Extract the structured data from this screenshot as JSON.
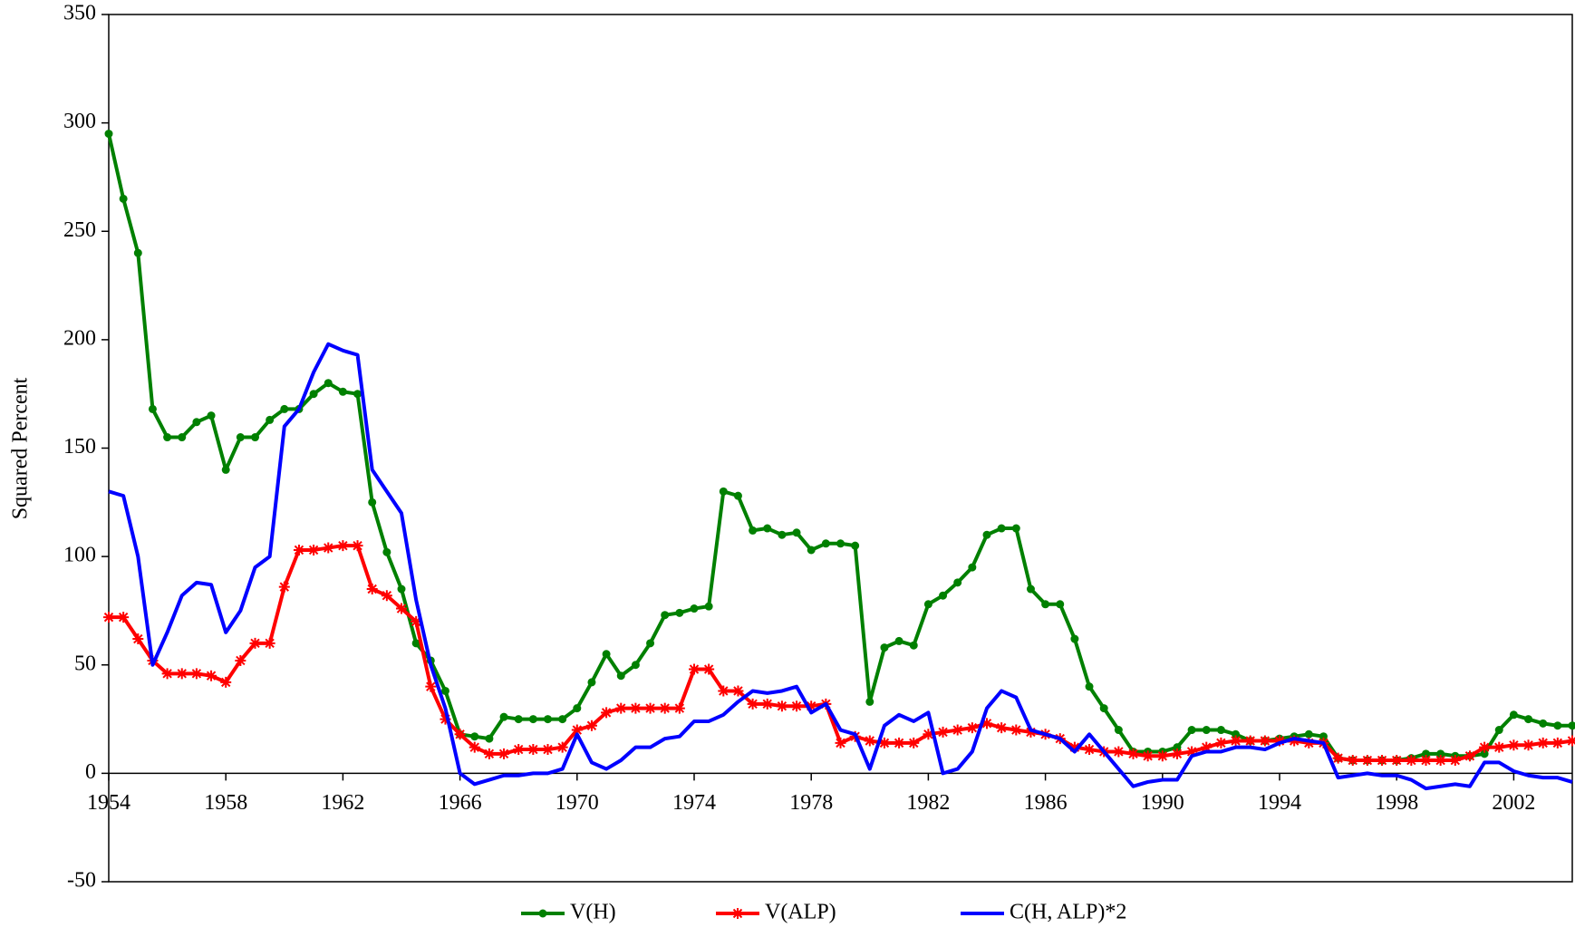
{
  "chart_data": {
    "type": "line",
    "y_label": "Squared Percent",
    "x": [
      1954,
      1954.5,
      1955,
      1955.5,
      1956,
      1956.5,
      1957,
      1957.5,
      1958,
      1958.5,
      1959,
      1959.5,
      1960,
      1960.5,
      1961,
      1961.5,
      1962,
      1962.5,
      1963,
      1963.5,
      1964,
      1964.5,
      1965,
      1965.5,
      1966,
      1966.5,
      1967,
      1967.5,
      1968,
      1968.5,
      1969,
      1969.5,
      1970,
      1970.5,
      1971,
      1971.5,
      1972,
      1972.5,
      1973,
      1973.5,
      1974,
      1974.5,
      1975,
      1975.5,
      1976,
      1976.5,
      1977,
      1977.5,
      1978,
      1978.5,
      1979,
      1979.5,
      1980,
      1980.5,
      1981,
      1981.5,
      1982,
      1982.5,
      1983,
      1983.5,
      1984,
      1984.5,
      1985,
      1985.5,
      1986,
      1986.5,
      1987,
      1987.5,
      1988,
      1988.5,
      1989,
      1989.5,
      1990,
      1990.5,
      1991,
      1991.5,
      1992,
      1992.5,
      1993,
      1993.5,
      1994,
      1994.5,
      1995,
      1995.5,
      1996,
      1996.5,
      1997,
      1997.5,
      1998,
      1998.5,
      1999,
      1999.5,
      2000,
      2000.5,
      2001,
      2001.5,
      2002,
      2002.5,
      2003,
      2003.5,
      2004
    ],
    "series": [
      {
        "name": "V(H)",
        "color": "#008000",
        "marker": "circle",
        "values": [
          295,
          265,
          240,
          168,
          155,
          155,
          162,
          165,
          140,
          155,
          155,
          163,
          168,
          168,
          175,
          180,
          176,
          175,
          125,
          102,
          85,
          60,
          52,
          38,
          18,
          17,
          16,
          26,
          25,
          25,
          25,
          25,
          30,
          42,
          55,
          45,
          50,
          60,
          73,
          74,
          76,
          77,
          130,
          128,
          112,
          113,
          110,
          111,
          103,
          106,
          106,
          105,
          33,
          58,
          61,
          59,
          78,
          82,
          88,
          95,
          110,
          113,
          113,
          85,
          78,
          78,
          62,
          40,
          30,
          20,
          10,
          10,
          10,
          12,
          20,
          20,
          20,
          18,
          15,
          15,
          16,
          17,
          18,
          17,
          7,
          6,
          6,
          6,
          6,
          7,
          9,
          9,
          8,
          8,
          9,
          20,
          27,
          25,
          23,
          22,
          22
        ]
      },
      {
        "name": "V(ALP)",
        "color": "#ff0000",
        "marker": "star",
        "values": [
          72,
          72,
          62,
          52,
          46,
          46,
          46,
          45,
          42,
          52,
          60,
          60,
          86,
          103,
          103,
          104,
          105,
          105,
          85,
          82,
          76,
          70,
          40,
          25,
          18,
          12,
          9,
          9,
          11,
          11,
          11,
          12,
          20,
          22,
          28,
          30,
          30,
          30,
          30,
          30,
          48,
          48,
          38,
          38,
          32,
          32,
          31,
          31,
          31,
          32,
          14,
          17,
          15,
          14,
          14,
          14,
          18,
          19,
          20,
          21,
          23,
          21,
          20,
          19,
          18,
          16,
          12,
          11,
          10,
          10,
          9,
          8,
          8,
          9,
          10,
          12,
          14,
          15,
          15,
          15,
          15,
          15,
          14,
          14,
          7,
          6,
          6,
          6,
          6,
          6,
          6,
          6,
          6,
          8,
          12,
          12,
          13,
          13,
          14,
          14,
          15
        ]
      },
      {
        "name": "C(H, ALP)*2",
        "color": "#0000ff",
        "marker": "none",
        "values": [
          130,
          128,
          100,
          50,
          65,
          82,
          88,
          87,
          65,
          75,
          95,
          100,
          160,
          168,
          185,
          198,
          195,
          193,
          140,
          130,
          120,
          80,
          50,
          30,
          0,
          -5,
          -3,
          -1,
          -1,
          0,
          0,
          2,
          18,
          5,
          2,
          6,
          12,
          12,
          16,
          17,
          24,
          24,
          27,
          33,
          38,
          37,
          38,
          40,
          28,
          32,
          20,
          18,
          2,
          22,
          27,
          24,
          28,
          0,
          2,
          10,
          30,
          38,
          35,
          20,
          18,
          16,
          10,
          18,
          10,
          2,
          -6,
          -4,
          -3,
          -3,
          8,
          10,
          10,
          12,
          12,
          11,
          14,
          16,
          15,
          14,
          -2,
          -1,
          0,
          -1,
          -1,
          -3,
          -7,
          -6,
          -5,
          -6,
          5,
          5,
          1,
          -1,
          -2,
          -2,
          -4
        ]
      }
    ],
    "xlim": [
      1954,
      2004
    ],
    "xticks": [
      1954,
      1958,
      1962,
      1966,
      1970,
      1974,
      1978,
      1982,
      1986,
      1990,
      1994,
      1998,
      2002
    ],
    "ylim": [
      -50,
      350
    ],
    "yticks": [
      -50,
      0,
      50,
      100,
      150,
      200,
      250,
      300,
      350
    ],
    "legend": "bottom"
  }
}
